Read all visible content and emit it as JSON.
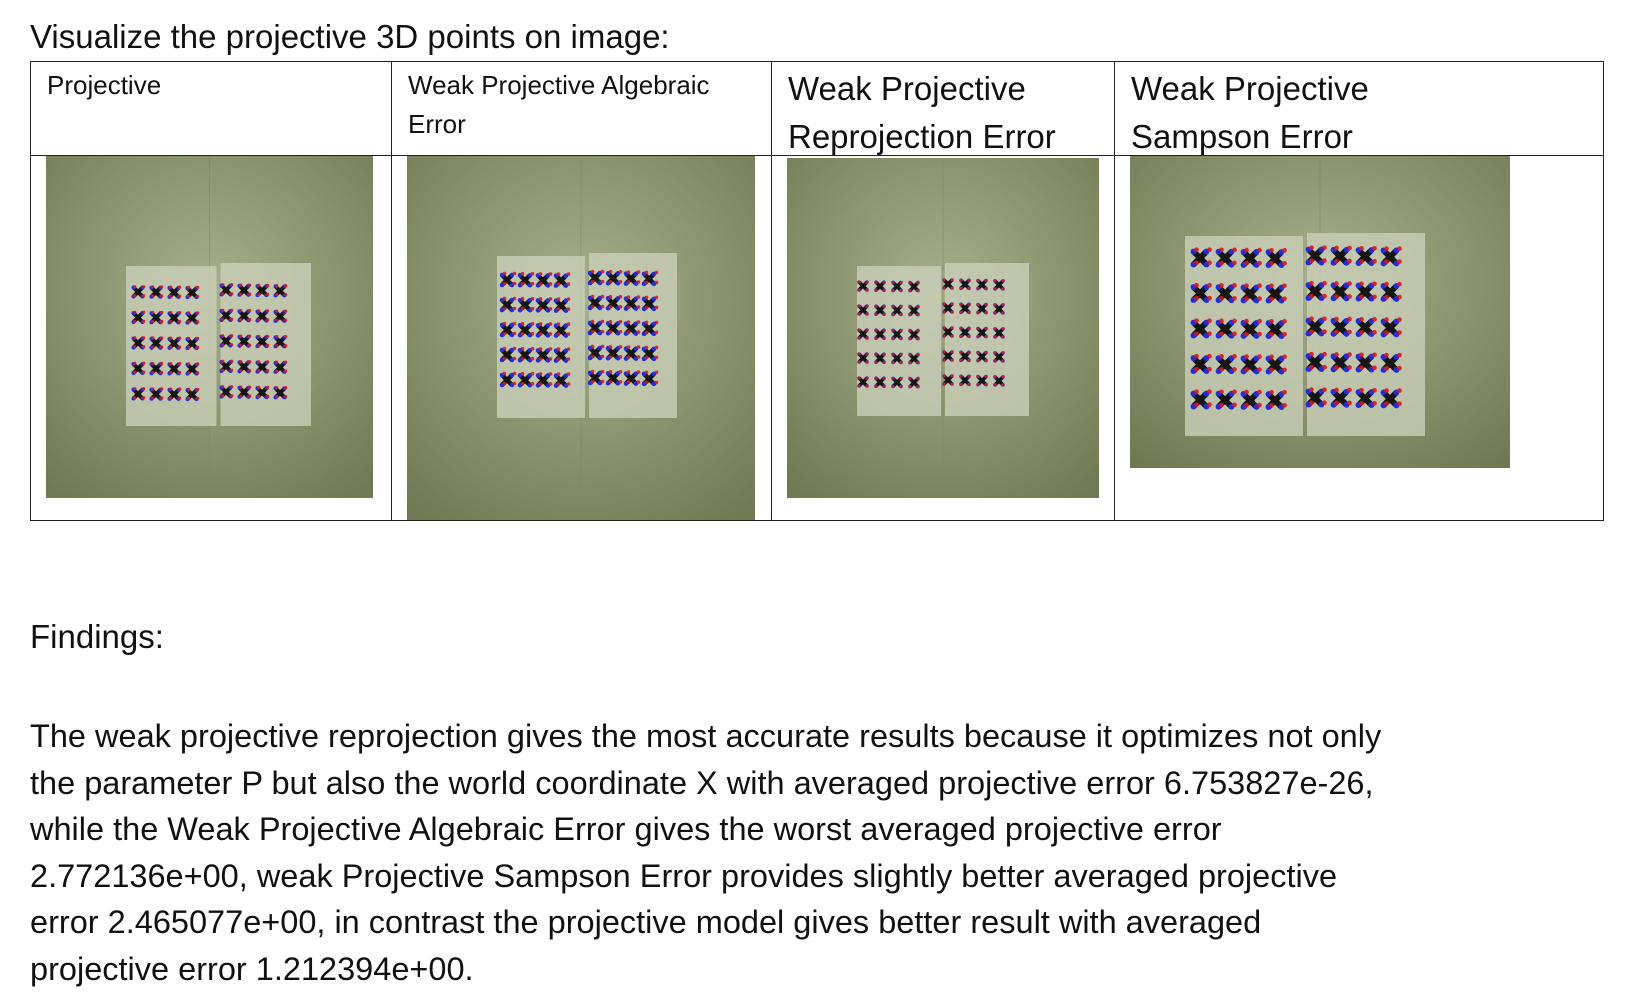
{
  "page": {
    "heading": "Visualize the projective 3D points on image:",
    "columns": [
      {
        "header": "Projective",
        "image": "wall-calibration-photo-projective"
      },
      {
        "header": "Weak Projective Algebraic\nError",
        "image": "wall-calibration-photo-weak-algebraic"
      },
      {
        "header": "Weak Projective\nReprojection Error",
        "image": "wall-calibration-photo-weak-reprojection"
      },
      {
        "header": "Weak Projective\nSampson Error",
        "image": "wall-calibration-photo-weak-sampson"
      }
    ],
    "findings_title": "Findings:",
    "findings_text": "The weak projective reprojection gives the most accurate results because it optimizes not only\nthe parameter P but also the world coordinate X with averaged projective error 6.753827e-26,\nwhile the Weak Projective Algebraic Error gives the worst averaged projective error\n2.772136e+00, weak Projective Sampson Error provides slightly better averaged projective\nerror 2.465077e+00,  in contrast the projective model gives better result with averaged\nprojective error 1.212394e+00."
  },
  "colors": {
    "wall": "#8f9a6e",
    "paper": "#c9cfb8",
    "marker_black": "#151515",
    "marker_red": "#e01515",
    "marker_blue": "#1a2ee8"
  }
}
